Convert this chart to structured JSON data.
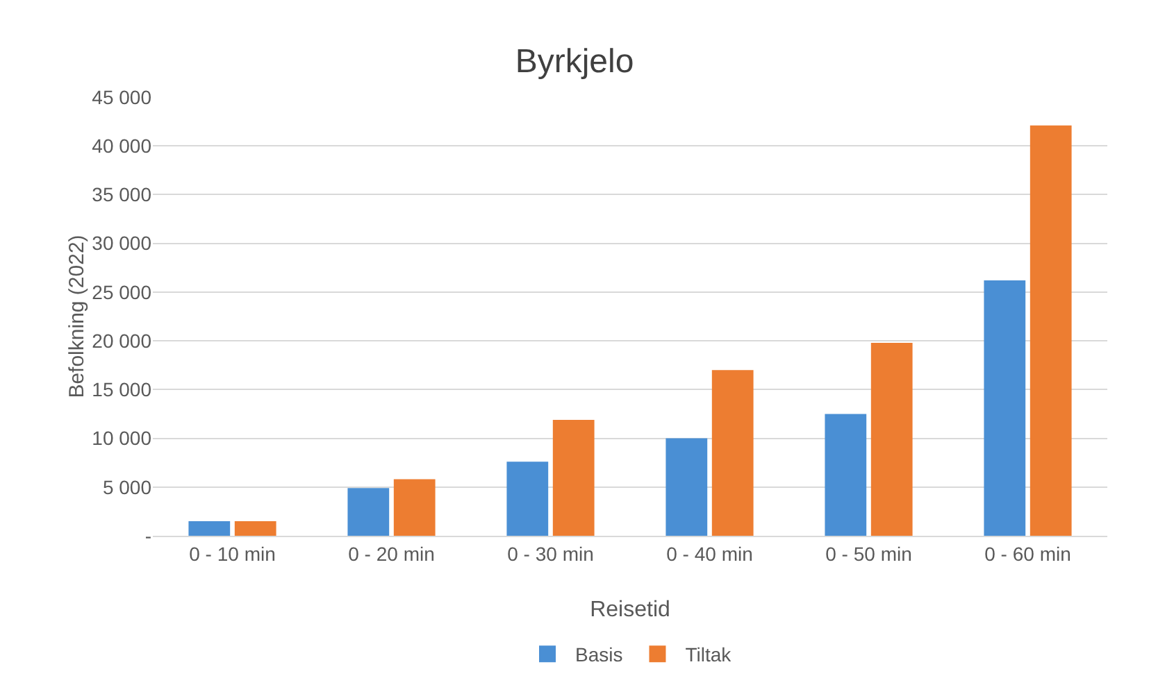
{
  "chart_data": {
    "type": "bar",
    "title": "Byrkjelo",
    "xlabel": "Reisetid",
    "ylabel": "Befolkning (2022)",
    "categories": [
      "0 - 10 min",
      "0 - 20 min",
      "0 - 30 min",
      "0 - 40 min",
      "0 - 50 min",
      "0 - 60 min"
    ],
    "series": [
      {
        "name": "Basis",
        "color": "#4a8fd4",
        "values": [
          1500,
          4900,
          7600,
          10000,
          12500,
          26200
        ]
      },
      {
        "name": "Tiltak",
        "color": "#ed7d31",
        "values": [
          1500,
          5800,
          11900,
          17000,
          19800,
          42100
        ]
      }
    ],
    "ylim": [
      0,
      45000
    ],
    "yticks": [
      {
        "value": 0,
        "label": "-"
      },
      {
        "value": 5000,
        "label": "5 000"
      },
      {
        "value": 10000,
        "label": "10 000"
      },
      {
        "value": 15000,
        "label": "15 000"
      },
      {
        "value": 20000,
        "label": "20 000"
      },
      {
        "value": 25000,
        "label": "25 000"
      },
      {
        "value": 30000,
        "label": "30 000"
      },
      {
        "value": 35000,
        "label": "35 000"
      },
      {
        "value": 40000,
        "label": "40 000"
      },
      {
        "value": 45000,
        "label": "45 000"
      }
    ],
    "grid": "y",
    "legend": "bottom"
  }
}
